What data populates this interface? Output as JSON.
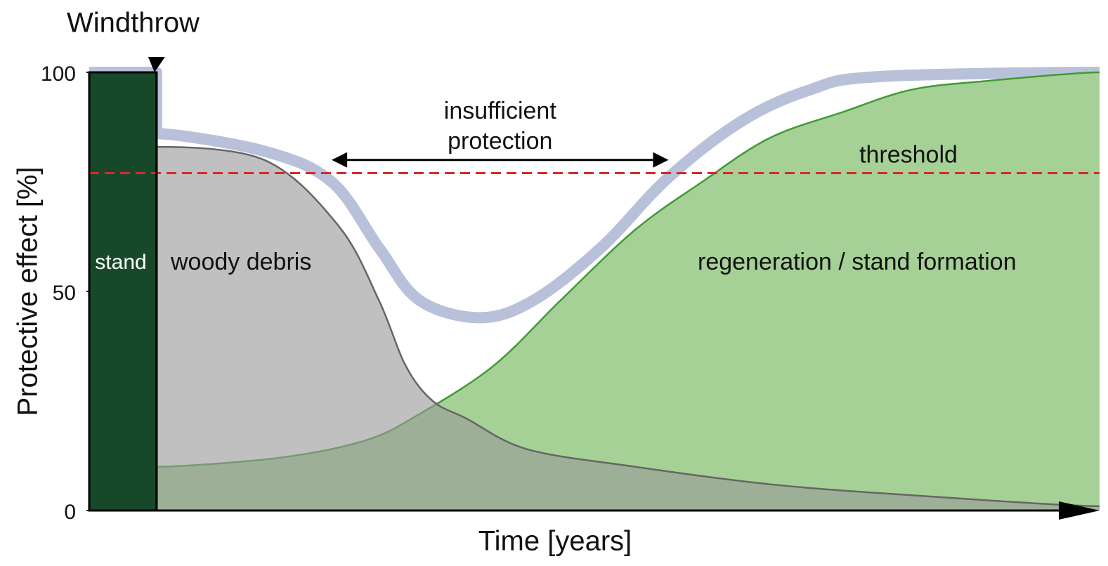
{
  "chart_data": {
    "type": "area",
    "title": "Windthrow",
    "y_label": "Protective effect [%]",
    "x_label": "Time [years]",
    "xlim": [
      0,
      150
    ],
    "ylim": [
      0,
      100
    ],
    "yticks": [
      0,
      50,
      100
    ],
    "grid": false,
    "windthrow_x": 10,
    "series": [
      {
        "type": "line",
        "color": "#b8c1d9",
        "x": [
          0,
          10,
          10,
          26,
          36,
          43,
          49,
          58,
          66,
          76,
          86,
          97,
          107,
          117,
          150
        ],
        "values": [
          100,
          100,
          86,
          82,
          75,
          60,
          48,
          44,
          48,
          60,
          76,
          89,
          96,
          99,
          100
        ]
      },
      {
        "type": "area",
        "name": "regeneration / stand formation",
        "color": "#a6d196",
        "line_color": "#3f9a35",
        "x": [
          10,
          28,
          41,
          49,
          60,
          70,
          81,
          91,
          101,
          112,
          122,
          133,
          150
        ],
        "values": [
          10,
          12,
          16,
          22,
          33,
          48,
          64,
          75,
          85,
          91,
          96,
          98,
          100
        ]
      },
      {
        "type": "area",
        "name": "woody debris",
        "color": "#999999",
        "line_color": "#666666",
        "x": [
          10,
          26,
          37,
          43,
          47,
          51,
          56,
          65,
          81,
          101,
          122,
          150
        ],
        "values": [
          83,
          80,
          65,
          48,
          33,
          25,
          21,
          14,
          10,
          6,
          3.5,
          1
        ]
      },
      {
        "type": "bar",
        "name": "stand",
        "color": "#17482a",
        "bins": [
          0,
          10
        ],
        "values": [
          100
        ]
      }
    ],
    "threshold": {
      "label": "threshold",
      "value": 77,
      "color": "#d42a2a"
    },
    "gap": {
      "lines": [
        "insufficient",
        "protection"
      ],
      "x": [
        36,
        86
      ],
      "y": 80
    }
  }
}
